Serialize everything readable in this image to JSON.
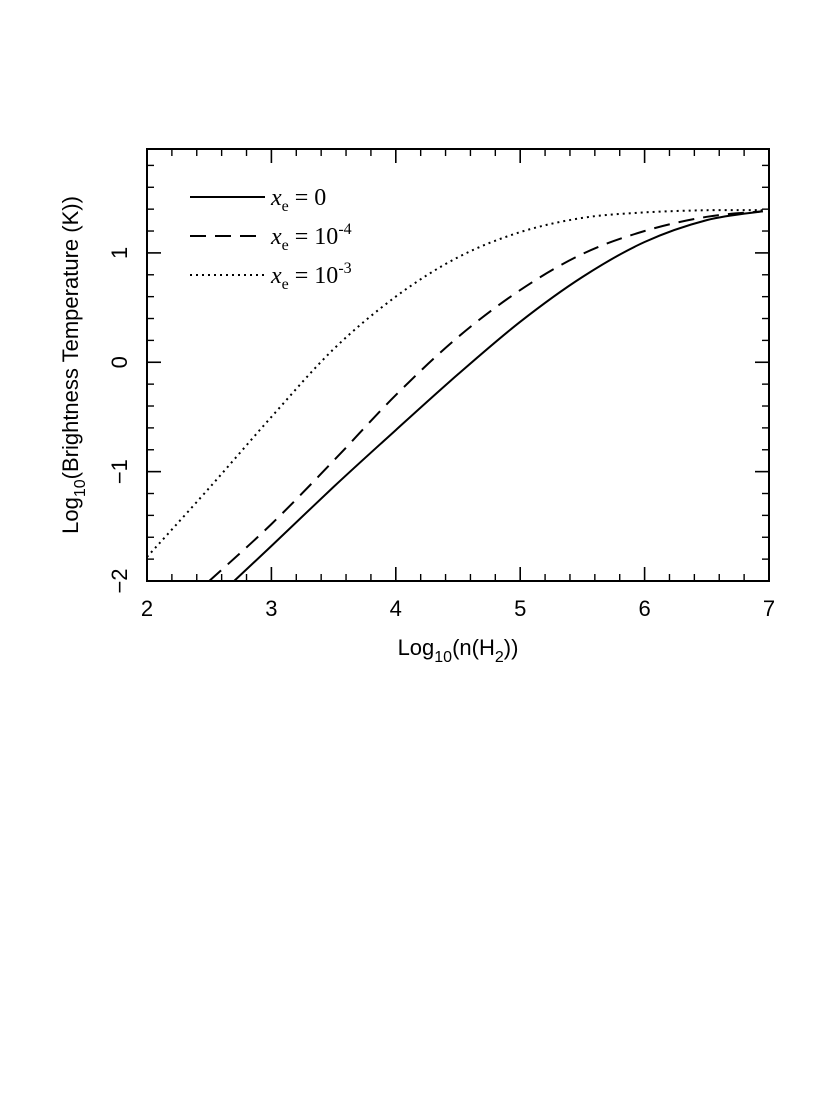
{
  "chart_data": {
    "type": "line",
    "xlabel": {
      "prefix": "Log",
      "sub": "10",
      "open": "(n(H",
      "sub2": "2",
      "close": "))"
    },
    "ylabel": {
      "prefix": "Log",
      "sub": "10",
      "rest": "(Brightness Temperature (K))"
    },
    "xlim": [
      2,
      7
    ],
    "ylim": [
      -2,
      1.95
    ],
    "xticks": [
      2,
      3,
      4,
      5,
      6,
      7
    ],
    "xtick_labels": [
      "2",
      "3",
      "4",
      "5",
      "6",
      "7"
    ],
    "yticks": [
      -2,
      -1,
      0,
      1
    ],
    "ytick_labels": [
      "−2",
      "−1",
      "0",
      "1"
    ],
    "legend_position": "top-left",
    "series": [
      {
        "style": "solid",
        "legend": {
          "var": "x",
          "sub": "e",
          "eq": " = 0",
          "sup": ""
        },
        "points": [
          [
            2.7,
            -2.0
          ],
          [
            3.0,
            -1.68
          ],
          [
            3.5,
            -1.14
          ],
          [
            4.0,
            -0.62
          ],
          [
            4.5,
            -0.11
          ],
          [
            5.0,
            0.37
          ],
          [
            5.5,
            0.78
          ],
          [
            6.0,
            1.1
          ],
          [
            6.5,
            1.3
          ],
          [
            6.95,
            1.38
          ]
        ]
      },
      {
        "style": "dashed",
        "legend": {
          "var": "x",
          "sub": "e",
          "eq": " = 10",
          "sup": "-4"
        },
        "points": [
          [
            2.5,
            -2.0
          ],
          [
            3.0,
            -1.48
          ],
          [
            3.5,
            -0.9
          ],
          [
            4.0,
            -0.3
          ],
          [
            4.5,
            0.23
          ],
          [
            5.0,
            0.66
          ],
          [
            5.5,
            0.99
          ],
          [
            6.0,
            1.2
          ],
          [
            6.5,
            1.33
          ],
          [
            6.95,
            1.38
          ]
        ]
      },
      {
        "style": "dotted",
        "legend": {
          "var": "x",
          "sub": "e",
          "eq": " = 10",
          "sup": "-3"
        },
        "points": [
          [
            2.0,
            -1.78
          ],
          [
            2.5,
            -1.15
          ],
          [
            3.0,
            -0.5
          ],
          [
            3.5,
            0.12
          ],
          [
            4.0,
            0.6
          ],
          [
            4.5,
            0.96
          ],
          [
            5.0,
            1.19
          ],
          [
            5.5,
            1.32
          ],
          [
            6.0,
            1.37
          ],
          [
            6.5,
            1.39
          ],
          [
            6.95,
            1.39
          ]
        ]
      }
    ]
  }
}
